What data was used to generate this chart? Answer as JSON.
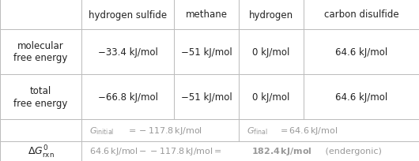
{
  "col_headers": [
    "",
    "hydrogen sulfide",
    "methane",
    "hydrogen",
    "carbon disulfide"
  ],
  "row1_label": "molecular\nfree energy",
  "row1_vals": [
    "−33.4 kJ/mol",
    "−51 kJ/mol",
    "0 kJ/mol",
    "64.6 kJ/mol"
  ],
  "row2_label": "total\nfree energy",
  "row2_vals": [
    "−66.8 kJ/mol",
    "−51 kJ/mol",
    "0 kJ/mol",
    "64.6 kJ/mol"
  ],
  "background": "#ffffff",
  "border_color": "#bbbbbb",
  "text_color": "#222222",
  "light_text_color": "#999999",
  "figw": 5.3,
  "figh": 2.05,
  "dpi": 100
}
